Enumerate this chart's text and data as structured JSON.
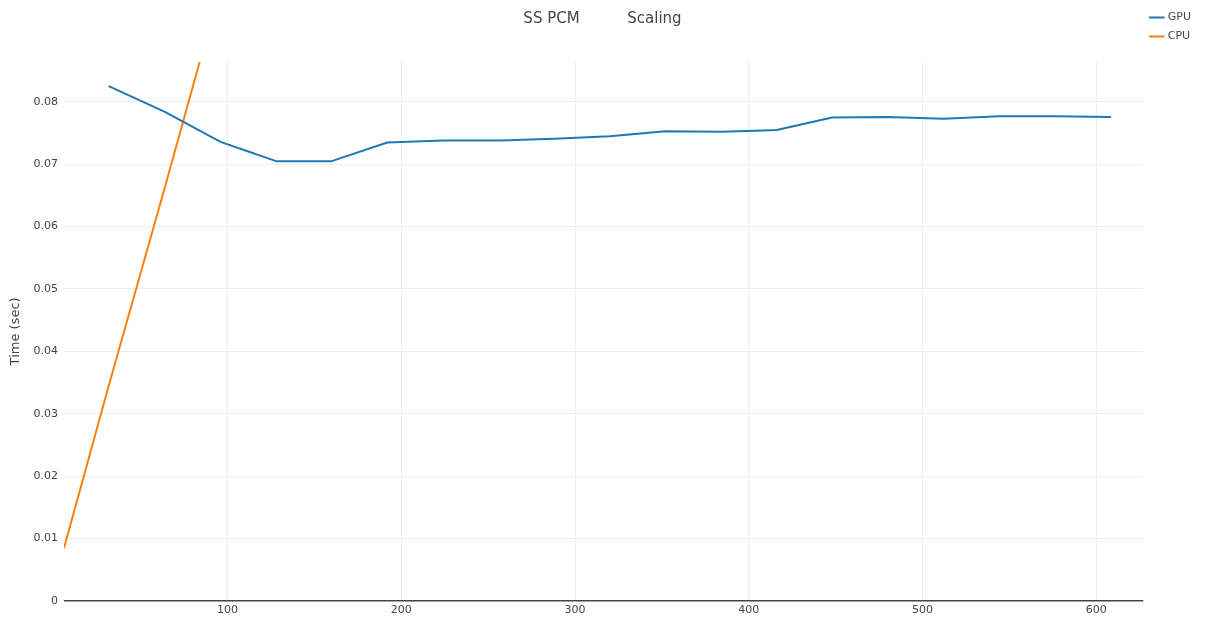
{
  "chart_data": {
    "type": "line",
    "title": "SS PCM          Scaling",
    "ylabel": "Time (sec)",
    "xlim": [
      6,
      627
    ],
    "xticks": [
      100,
      200,
      300,
      400,
      500,
      600
    ],
    "ylim": [
      0,
      0.0864
    ],
    "yticks": [
      0,
      0.01,
      0.02,
      0.03,
      0.04,
      0.05,
      0.06,
      0.07,
      0.08
    ],
    "grid": true,
    "legend": "top right",
    "marker": "none",
    "line_style": "solid",
    "series": [
      {
        "name": "GPU",
        "color": "#1f77b4",
        "x": [
          32,
          64,
          96,
          128,
          160,
          192,
          224,
          256,
          288,
          320,
          352,
          384,
          416,
          448,
          480,
          512,
          544,
          576,
          608
        ],
        "values": [
          0.0825,
          0.0784,
          0.0736,
          0.0705,
          0.0705,
          0.0735,
          0.0738,
          0.0738,
          0.0741,
          0.0745,
          0.0753,
          0.0752,
          0.0755,
          0.0775,
          0.0776,
          0.0773,
          0.0777,
          0.0777,
          0.0776
        ]
      },
      {
        "name": "CPU",
        "color": "#ff7f0e",
        "x": [
          6,
          32,
          64,
          84
        ],
        "values": [
          0.0085,
          0.0348,
          0.0663,
          0.0864
        ]
      }
    ]
  }
}
